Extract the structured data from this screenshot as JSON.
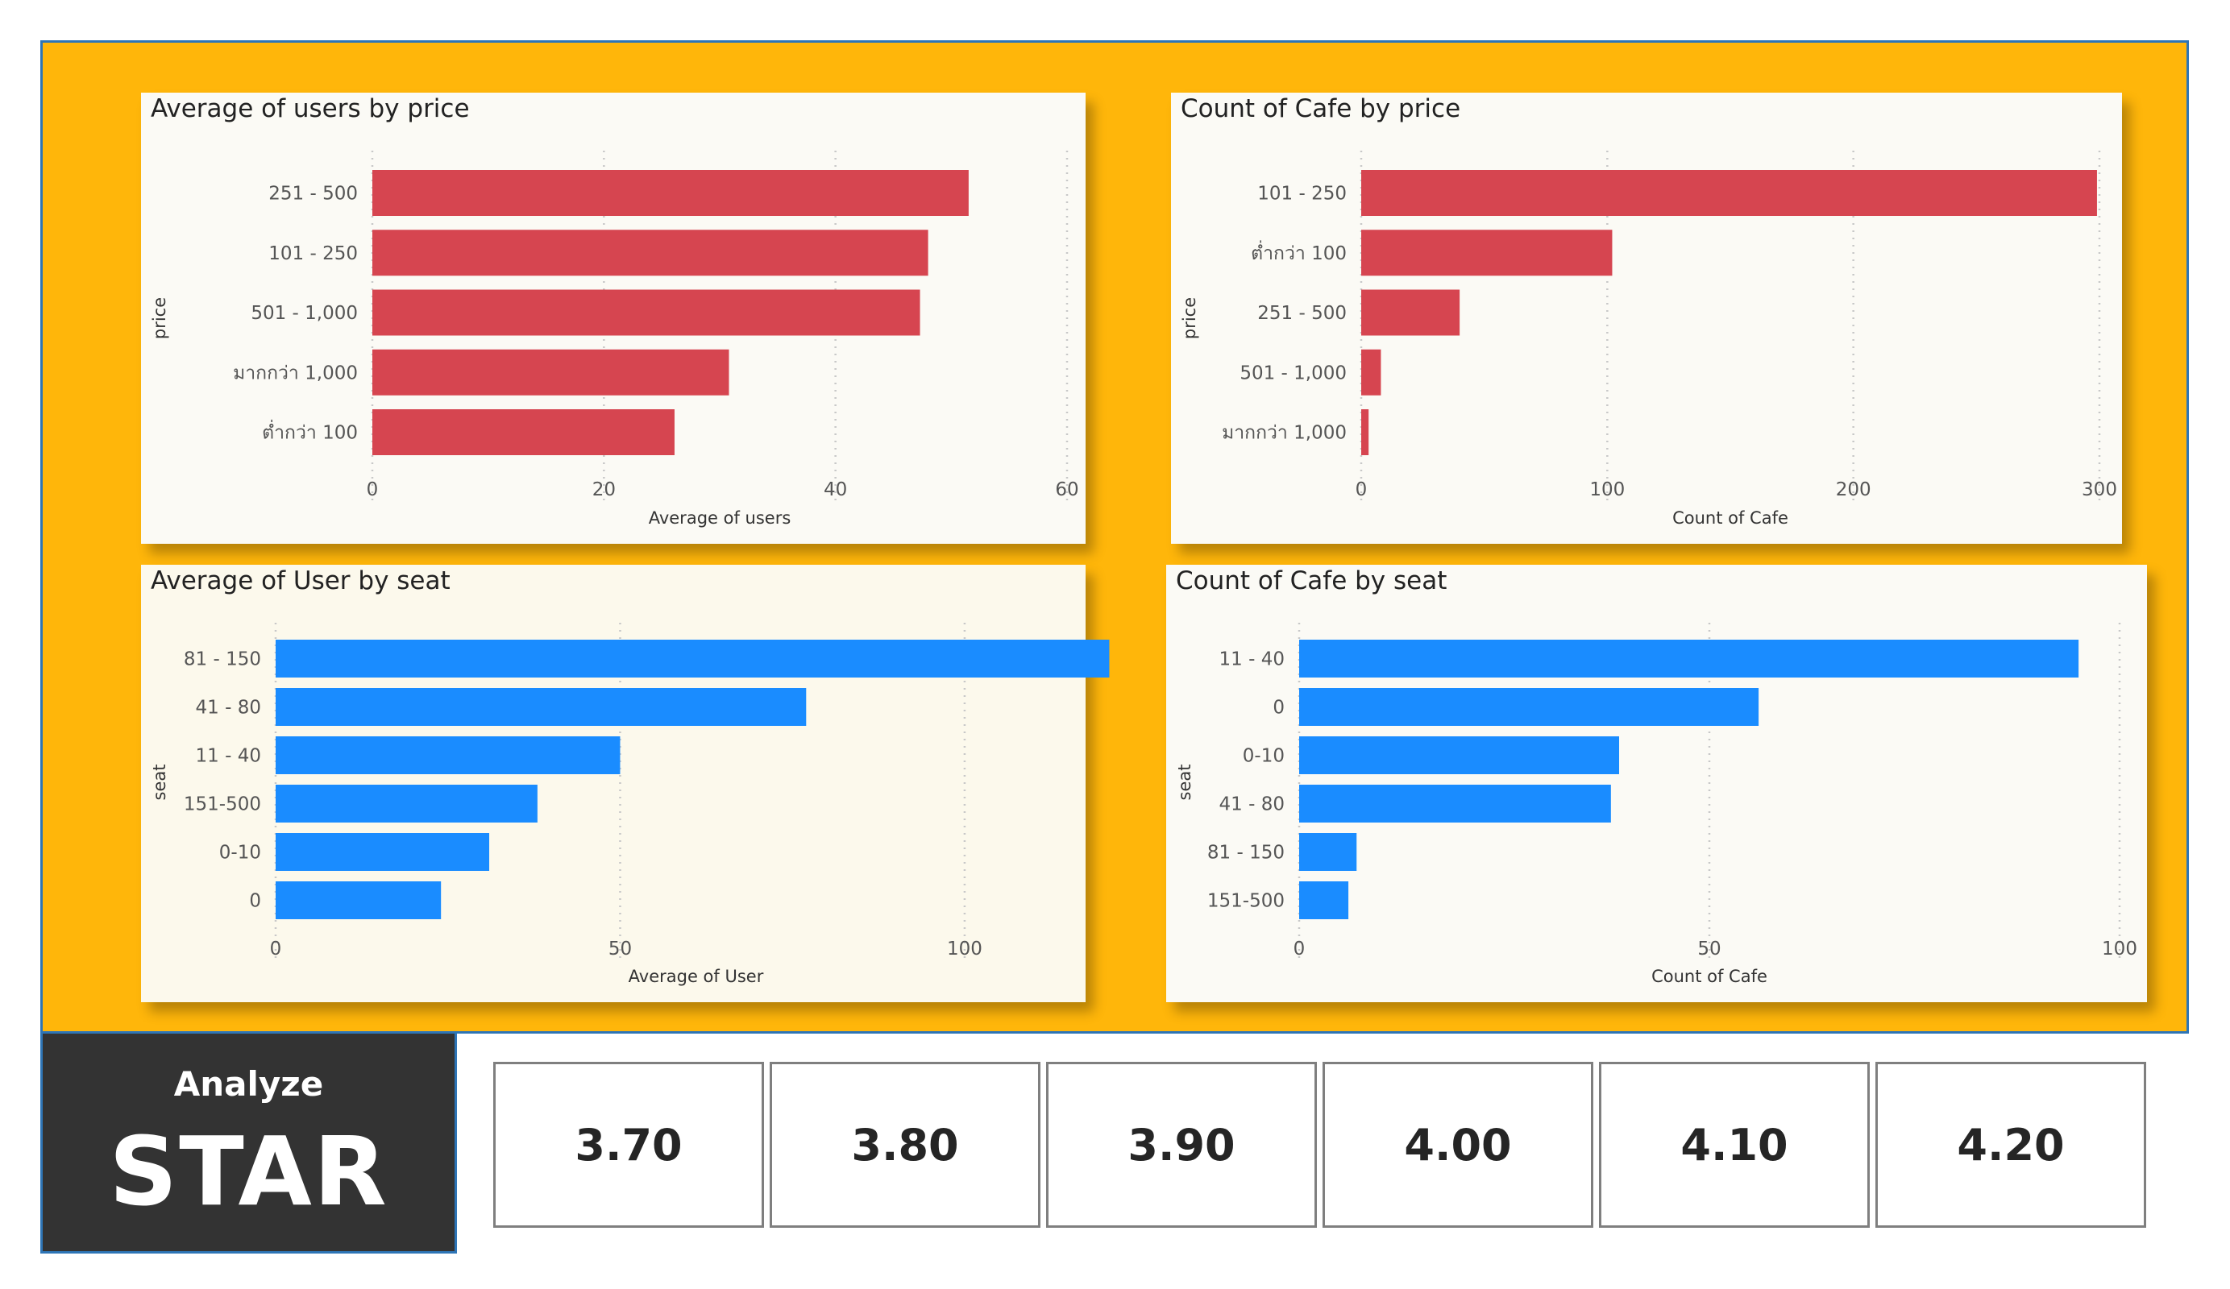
{
  "chart_data": [
    {
      "type": "bar",
      "title": "Average of users by price",
      "xlabel": "Average of users",
      "ylabel": "price",
      "categories": [
        "251 - 500",
        "101 - 250",
        "501 - 1,000",
        "มากกว่า 1,000",
        "ต่ำกว่า 100"
      ],
      "values": [
        51.5,
        48,
        47.3,
        30.8,
        26.1
      ],
      "xlim": [
        0,
        60
      ],
      "xticks": [
        0,
        20,
        40,
        60
      ],
      "color": "#D64550",
      "background": "#FBFAF5"
    },
    {
      "type": "bar",
      "title": "Count of Cafe by price",
      "xlabel": "Count of Cafe",
      "ylabel": "price",
      "categories": [
        "101 - 250",
        "ต่ำกว่า 100",
        "251 - 500",
        "501 - 1,000",
        "มากกว่า 1,000"
      ],
      "values": [
        299,
        102,
        40,
        8,
        3
      ],
      "xlim": [
        0,
        300
      ],
      "xticks": [
        0,
        100,
        200,
        300
      ],
      "color": "#D64550",
      "background": "#FBFAF5"
    },
    {
      "type": "bar",
      "title": "Average of User by seat",
      "xlabel": "Average of User",
      "ylabel": "seat",
      "categories": [
        "81 - 150",
        "41 - 80",
        "11 - 40",
        "151-500",
        "0-10",
        "0"
      ],
      "values": [
        121,
        77,
        50,
        38,
        31,
        24
      ],
      "xlim": [
        0,
        122
      ],
      "xticks": [
        0,
        50,
        100
      ],
      "color": "#1A8CFF",
      "background": "#FCF9EC"
    },
    {
      "type": "bar",
      "title": "Count of Cafe by seat",
      "xlabel": "Count of Cafe",
      "ylabel": "seat",
      "categories": [
        "11 - 40",
        "0",
        "0-10",
        "41 - 80",
        "81 - 150",
        "151-500"
      ],
      "values": [
        95,
        56,
        39,
        38,
        7,
        6
      ],
      "xlim": [
        0,
        100
      ],
      "xticks": [
        0,
        50,
        100
      ],
      "color": "#1A8CFF",
      "background": "#FBFAF5"
    }
  ],
  "star_filter": {
    "label": "Analyze",
    "title": "STAR",
    "options": [
      "3.70",
      "3.80",
      "3.90",
      "4.00",
      "4.10",
      "4.20"
    ]
  }
}
